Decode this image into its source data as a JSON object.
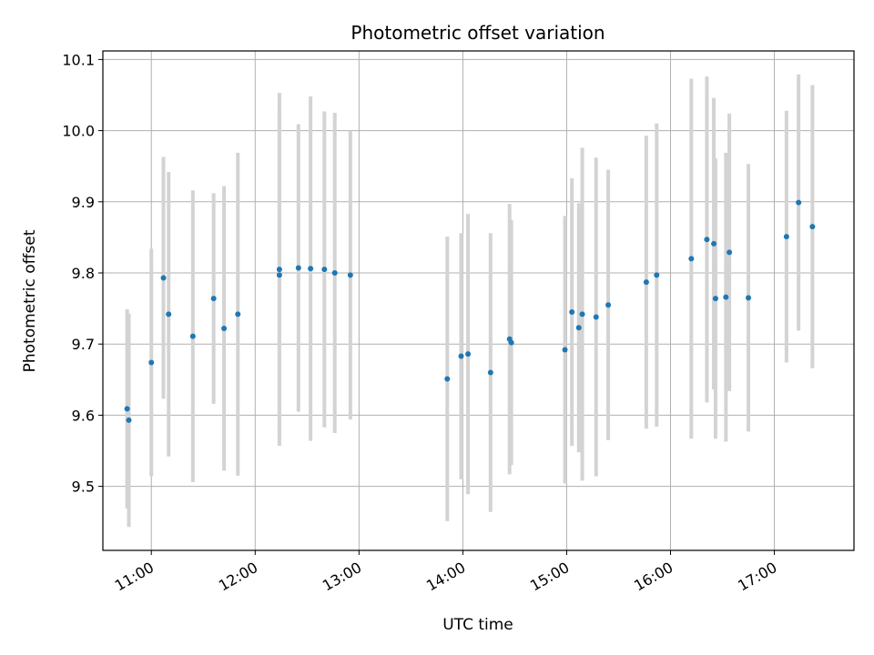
{
  "chart_data": {
    "type": "scatter",
    "title": "Photometric offset variation",
    "xlabel": "UTC time",
    "ylabel": "Photometric offset",
    "x_ticks": [
      "11:00",
      "12:00",
      "13:00",
      "14:00",
      "15:00",
      "16:00",
      "17:00"
    ],
    "y_ticks": [
      "9.5",
      "9.6",
      "9.7",
      "9.8",
      "9.9",
      "10.0",
      "10.1"
    ],
    "xlim": [
      "10:32",
      "17:46"
    ],
    "ylim": [
      9.41,
      10.112
    ],
    "grid": true,
    "colors": {
      "point": "#1f77b4",
      "errorbar": "#d3d3d3",
      "grid": "#b0b0b0"
    },
    "points": [
      {
        "x": "10:46",
        "y": 9.609,
        "err": 0.14
      },
      {
        "x": "10:47",
        "y": 9.593,
        "err": 0.15
      },
      {
        "x": "11:00",
        "y": 9.674,
        "err": 0.16
      },
      {
        "x": "11:07",
        "y": 9.793,
        "err": 0.17
      },
      {
        "x": "11:10",
        "y": 9.742,
        "err": 0.2
      },
      {
        "x": "11:24",
        "y": 9.711,
        "err": 0.205
      },
      {
        "x": "11:36",
        "y": 9.764,
        "err": 0.148
      },
      {
        "x": "11:42",
        "y": 9.722,
        "err": 0.2
      },
      {
        "x": "11:50",
        "y": 9.742,
        "err": 0.227
      },
      {
        "x": "12:14",
        "y": 9.805,
        "err": 0.248
      },
      {
        "x": "12:14",
        "y": 9.797,
        "err": 0.23
      },
      {
        "x": "12:25",
        "y": 9.807,
        "err": 0.202
      },
      {
        "x": "12:32",
        "y": 9.806,
        "err": 0.242
      },
      {
        "x": "12:40",
        "y": 9.805,
        "err": 0.222
      },
      {
        "x": "12:46",
        "y": 9.8,
        "err": 0.225
      },
      {
        "x": "12:55",
        "y": 9.797,
        "err": 0.203
      },
      {
        "x": "13:51",
        "y": 9.651,
        "err": 0.2
      },
      {
        "x": "13:59",
        "y": 9.683,
        "err": 0.173
      },
      {
        "x": "14:03",
        "y": 9.686,
        "err": 0.197
      },
      {
        "x": "14:16",
        "y": 9.66,
        "err": 0.196
      },
      {
        "x": "14:27",
        "y": 9.707,
        "err": 0.19
      },
      {
        "x": "14:28",
        "y": 9.702,
        "err": 0.172
      },
      {
        "x": "14:59",
        "y": 9.692,
        "err": 0.188
      },
      {
        "x": "15:03",
        "y": 9.745,
        "err": 0.188
      },
      {
        "x": "15:07",
        "y": 9.723,
        "err": 0.175
      },
      {
        "x": "15:09",
        "y": 9.742,
        "err": 0.234
      },
      {
        "x": "15:17",
        "y": 9.738,
        "err": 0.224
      },
      {
        "x": "15:24",
        "y": 9.755,
        "err": 0.19
      },
      {
        "x": "15:46",
        "y": 9.787,
        "err": 0.206
      },
      {
        "x": "15:52",
        "y": 9.797,
        "err": 0.213
      },
      {
        "x": "16:12",
        "y": 9.82,
        "err": 0.253
      },
      {
        "x": "16:21",
        "y": 9.847,
        "err": 0.229
      },
      {
        "x": "16:25",
        "y": 9.841,
        "err": 0.205
      },
      {
        "x": "16:26",
        "y": 9.764,
        "err": 0.197
      },
      {
        "x": "16:32",
        "y": 9.766,
        "err": 0.203
      },
      {
        "x": "16:34",
        "y": 9.829,
        "err": 0.195
      },
      {
        "x": "16:45",
        "y": 9.765,
        "err": 0.188
      },
      {
        "x": "17:07",
        "y": 9.851,
        "err": 0.177
      },
      {
        "x": "17:14",
        "y": 9.899,
        "err": 0.18
      },
      {
        "x": "17:22",
        "y": 9.865,
        "err": 0.199
      }
    ]
  }
}
